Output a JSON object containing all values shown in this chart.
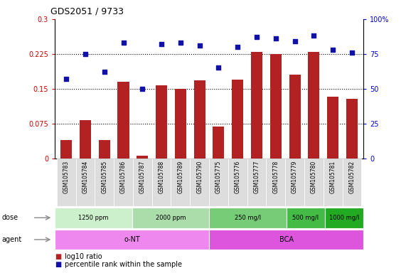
{
  "title": "GDS2051 / 9733",
  "samples": [
    "GSM105783",
    "GSM105784",
    "GSM105785",
    "GSM105786",
    "GSM105787",
    "GSM105788",
    "GSM105789",
    "GSM105790",
    "GSM105775",
    "GSM105776",
    "GSM105777",
    "GSM105778",
    "GSM105779",
    "GSM105780",
    "GSM105781",
    "GSM105782"
  ],
  "log10_ratio": [
    0.04,
    0.082,
    0.04,
    0.165,
    0.005,
    0.157,
    0.15,
    0.168,
    0.068,
    0.17,
    0.23,
    0.225,
    0.18,
    0.23,
    0.133,
    0.128
  ],
  "percentile_rank": [
    57,
    75,
    62,
    83,
    50,
    82,
    83,
    81,
    65,
    80,
    87,
    86,
    84,
    88,
    78,
    76
  ],
  "bar_color": "#b22222",
  "square_color": "#1111aa",
  "ylim_left": [
    0,
    0.3
  ],
  "ylim_right": [
    0,
    100
  ],
  "yticks_left": [
    0,
    0.075,
    0.15,
    0.225,
    0.3
  ],
  "ytick_labels_left": [
    "0",
    "0.075",
    "0.15",
    "0.225",
    "0.3"
  ],
  "yticks_right": [
    0,
    25,
    50,
    75,
    100
  ],
  "ytick_labels_right": [
    "0",
    "25",
    "50",
    "75",
    "100%"
  ],
  "hlines": [
    0.075,
    0.15,
    0.225
  ],
  "dose_groups": [
    {
      "label": "1250 ppm",
      "start": 0,
      "end": 4,
      "color": "#ccf0cc"
    },
    {
      "label": "2000 ppm",
      "start": 4,
      "end": 8,
      "color": "#aaddaa"
    },
    {
      "label": "250 mg/l",
      "start": 8,
      "end": 12,
      "color": "#77cc77"
    },
    {
      "label": "500 mg/l",
      "start": 12,
      "end": 14,
      "color": "#44bb44"
    },
    {
      "label": "1000 mg/l",
      "start": 14,
      "end": 16,
      "color": "#22aa22"
    }
  ],
  "agent_groups": [
    {
      "label": "o-NT",
      "start": 0,
      "end": 8,
      "color": "#ee88ee"
    },
    {
      "label": "BCA",
      "start": 8,
      "end": 16,
      "color": "#dd55dd"
    }
  ],
  "dose_label": "dose",
  "agent_label": "agent",
  "legend_bar_label": "log10 ratio",
  "legend_square_label": "percentile rank within the sample",
  "tick_color_left": "#cc0000",
  "tick_color_right": "#0000cc",
  "xticklabel_bg": "#dddddd"
}
